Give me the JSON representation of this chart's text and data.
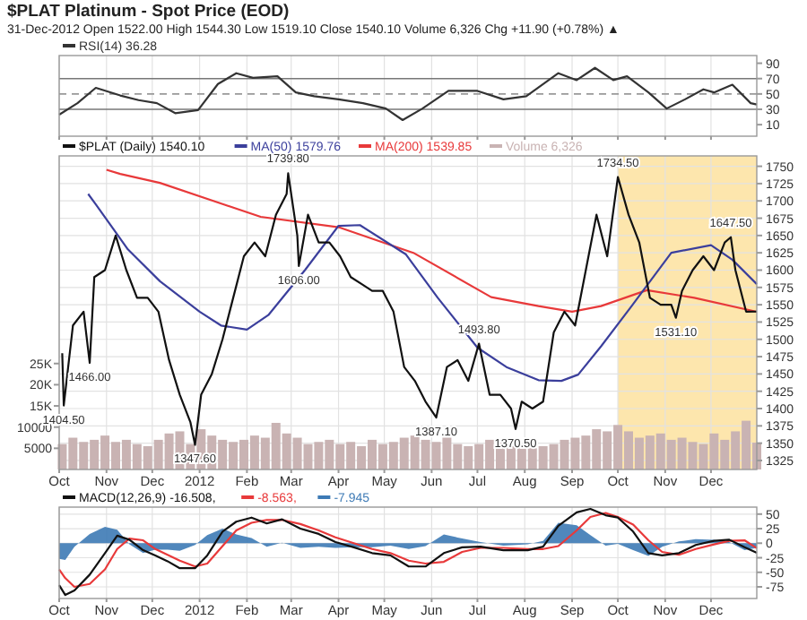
{
  "chart_data": [
    {
      "type": "line",
      "title": "$PLAT Platinum - Spot Price (EOD)",
      "subtitle": "31-Dec-2012   Open 1522.00  High 1544.30  Low 1519.10  Close 1540.10  Volume 6,326  Chg +11.90 (+0.78%) ▲",
      "xlim": [
        "2011-10-01",
        "2012-12-31"
      ],
      "xticks": [
        {
          "value": "2011-10-01",
          "label": null
        },
        {
          "value": "2011-11-01",
          "label": null
        },
        {
          "value": "2011-12-01",
          "label": null
        },
        {
          "value": "2012-01-01",
          "label": null
        },
        {
          "value": "2012-02-01",
          "label": null
        },
        {
          "value": "2012-03-01",
          "label": null
        },
        {
          "value": "2012-04-01",
          "label": null
        },
        {
          "value": "2012-05-01",
          "label": null
        },
        {
          "value": "2012-06-01",
          "label": null
        },
        {
          "value": "2012-07-01",
          "label": null
        },
        {
          "value": "2012-08-01",
          "label": null
        },
        {
          "value": "2012-09-01",
          "label": null
        },
        {
          "value": "2012-10-01",
          "label": null
        },
        {
          "value": "2012-11-01",
          "label": null
        },
        {
          "value": "2012-12-01",
          "label": null
        }
      ],
      "ylim": [
        -5,
        100
      ],
      "yticks": [
        10,
        30,
        50,
        70,
        90
      ],
      "grid": "x",
      "tick_labels": "y",
      "legend": "top left",
      "ref_lines": [
        {
          "axis": "y",
          "value": 70,
          "color": "#777777",
          "line_style": "solid"
        },
        {
          "axis": "y",
          "value": 50,
          "color": "#999999",
          "line_style": "dashed"
        },
        {
          "axis": "y",
          "value": 30,
          "color": "#777777",
          "line_style": "solid"
        }
      ],
      "series": [
        {
          "name": "RSI(14) 36.28",
          "color": "#333333",
          "x": [
            "2011-10-01",
            "2011-10-13",
            "2011-10-25",
            "2011-11-10",
            "2011-11-22",
            "2011-12-04",
            "2011-12-16",
            "2011-12-31",
            "2012-01-13",
            "2012-01-25",
            "2012-02-05",
            "2012-02-21",
            "2012-03-04",
            "2012-03-16",
            "2012-04-01",
            "2012-04-17",
            "2012-05-02",
            "2012-05-13",
            "2012-05-26",
            "2012-06-12",
            "2012-07-01",
            "2012-07-18",
            "2012-08-02",
            "2012-08-23",
            "2012-09-04",
            "2012-09-16",
            "2012-09-28",
            "2012-10-07",
            "2012-10-21",
            "2012-11-02",
            "2012-11-14",
            "2012-11-26",
            "2012-12-03",
            "2012-12-15",
            "2012-12-27",
            "2012-12-31"
          ],
          "values": [
            23,
            38,
            58,
            48,
            42,
            38,
            25,
            29,
            63,
            77,
            71,
            73,
            52,
            47,
            43,
            38,
            31,
            16,
            31,
            54,
            54,
            43,
            47,
            77,
            68,
            84,
            68,
            73,
            52,
            31,
            43,
            56,
            52,
            62,
            38,
            36.28
          ]
        }
      ]
    },
    {
      "type": "line",
      "xlim": [
        "2011-10-01",
        "2012-12-31"
      ],
      "xticks": [
        {
          "value": "2011-10-01",
          "label": "Oct"
        },
        {
          "value": "2011-11-01",
          "label": "Nov"
        },
        {
          "value": "2011-12-01",
          "label": "Dec"
        },
        {
          "value": "2012-01-01",
          "label": "2012"
        },
        {
          "value": "2012-02-01",
          "label": "Feb"
        },
        {
          "value": "2012-03-01",
          "label": "Mar"
        },
        {
          "value": "2012-04-01",
          "label": "Apr"
        },
        {
          "value": "2012-05-01",
          "label": "May"
        },
        {
          "value": "2012-06-01",
          "label": "Jun"
        },
        {
          "value": "2012-07-01",
          "label": "Jul"
        },
        {
          "value": "2012-08-01",
          "label": "Aug"
        },
        {
          "value": "2012-09-01",
          "label": "Sep"
        },
        {
          "value": "2012-10-01",
          "label": "Oct"
        },
        {
          "value": "2012-11-01",
          "label": "Nov"
        },
        {
          "value": "2012-12-01",
          "label": "Dec"
        }
      ],
      "ylim": [
        1312,
        1765
      ],
      "yticks": [
        1325,
        1350,
        1375,
        1400,
        1425,
        1450,
        1475,
        1500,
        1525,
        1550,
        1575,
        1600,
        1625,
        1650,
        1675,
        1700,
        1725,
        1750
      ],
      "y2lim": [
        0,
        74000
      ],
      "y2ticks": [
        5000,
        10000,
        {
          "value": 15000,
          "label": "15K"
        },
        {
          "value": 20000,
          "label": "20K"
        },
        {
          "value": 25000,
          "label": "25K"
        }
      ],
      "grid": true,
      "legend": "top left",
      "bands": [
        {
          "axis": "x",
          "from": "2012-10-01",
          "to": "2012-12-31",
          "color": "#fde6ad"
        }
      ],
      "annotations": [
        {
          "text": "1404.50",
          "x": "2011-10-04",
          "y": 1404.5
        },
        {
          "text": "1466.00",
          "x": "2011-10-21",
          "y": 1466
        },
        {
          "text": "1347.60",
          "x": "2011-12-29",
          "y": 1347.6
        },
        {
          "text": "1739.80",
          "x": "2012-02-28",
          "y": 1739.8
        },
        {
          "text": "1606.00",
          "x": "2012-03-06",
          "y": 1606
        },
        {
          "text": "1387.10",
          "x": "2012-06-04",
          "y": 1387.1
        },
        {
          "text": "1493.80",
          "x": "2012-07-02",
          "y": 1493.8
        },
        {
          "text": "1370.50",
          "x": "2012-07-26",
          "y": 1370.5
        },
        {
          "text": "1734.50",
          "x": "2012-10-01",
          "y": 1734.5
        },
        {
          "text": "1531.10",
          "x": "2012-11-08",
          "y": 1531.1
        },
        {
          "text": "1647.50",
          "x": "2012-12-14",
          "y": 1647.5
        }
      ],
      "series": [
        {
          "name": "Volume 6,326",
          "type": "bar",
          "axis": "y2",
          "color": "#c9b3b3",
          "x": [
            "2011-10-03",
            "2011-10-10",
            "2011-10-17",
            "2011-10-24",
            "2011-10-31",
            "2011-11-07",
            "2011-11-14",
            "2011-11-21",
            "2011-11-28",
            "2011-12-05",
            "2011-12-12",
            "2011-12-19",
            "2011-12-26",
            "2012-01-02",
            "2012-01-09",
            "2012-01-16",
            "2012-01-23",
            "2012-01-30",
            "2012-02-06",
            "2012-02-13",
            "2012-02-20",
            "2012-02-27",
            "2012-03-05",
            "2012-03-12",
            "2012-03-19",
            "2012-03-26",
            "2012-04-02",
            "2012-04-09",
            "2012-04-16",
            "2012-04-23",
            "2012-04-30",
            "2012-05-07",
            "2012-05-14",
            "2012-05-21",
            "2012-05-28",
            "2012-06-04",
            "2012-06-11",
            "2012-06-18",
            "2012-06-25",
            "2012-07-02",
            "2012-07-09",
            "2012-07-16",
            "2012-07-23",
            "2012-07-30",
            "2012-08-06",
            "2012-08-13",
            "2012-08-20",
            "2012-08-27",
            "2012-09-03",
            "2012-09-10",
            "2012-09-17",
            "2012-09-24",
            "2012-10-01",
            "2012-10-08",
            "2012-10-15",
            "2012-10-22",
            "2012-10-29",
            "2012-11-05",
            "2012-11-12",
            "2012-11-19",
            "2012-11-26",
            "2012-12-03",
            "2012-12-10",
            "2012-12-17",
            "2012-12-24",
            "2012-12-31"
          ],
          "values": [
            6000,
            7500,
            6500,
            7000,
            8000,
            6500,
            7000,
            6000,
            5500,
            7000,
            8500,
            9000,
            6000,
            9500,
            8000,
            7000,
            6500,
            7000,
            8000,
            7500,
            11000,
            8500,
            7500,
            6000,
            6500,
            7000,
            6000,
            6500,
            5500,
            7000,
            6000,
            6500,
            7500,
            8000,
            7000,
            6500,
            7500,
            6000,
            5500,
            6000,
            7000,
            6500,
            5500,
            6000,
            5000,
            5500,
            6000,
            7000,
            7500,
            8000,
            9500,
            9000,
            10500,
            9000,
            7500,
            8000,
            8500,
            7000,
            7500,
            6500,
            6000,
            8500,
            7000,
            9000,
            11500,
            6326
          ]
        },
        {
          "name": "MA(200) 1539.85",
          "color": "#e8393a",
          "x": [
            "2011-11-01",
            "2011-11-10",
            "2011-12-06",
            "2012-01-10",
            "2012-02-10",
            "2012-04-01",
            "2012-05-20",
            "2012-07-10",
            "2012-08-10",
            "2012-09-01",
            "2012-09-20",
            "2012-10-20",
            "2012-11-20",
            "2012-12-31"
          ],
          "values": [
            1745,
            1739,
            1726,
            1700,
            1677,
            1662,
            1625,
            1561,
            1548,
            1540,
            1548,
            1571,
            1560,
            1539.85
          ]
        },
        {
          "name": "MA(50) 1579.76",
          "color": "#3b3f9c",
          "x": [
            "2011-10-20",
            "2011-10-25",
            "2011-11-15",
            "2011-12-06",
            "2012-01-01",
            "2012-01-15",
            "2012-02-01",
            "2012-02-15",
            "2012-03-10",
            "2012-04-01",
            "2012-04-15",
            "2012-05-15",
            "2012-06-05",
            "2012-07-01",
            "2012-07-20",
            "2012-08-10",
            "2012-08-25",
            "2012-09-05",
            "2012-09-20",
            "2012-10-10",
            "2012-11-05",
            "2012-12-01",
            "2012-12-15",
            "2012-12-31"
          ],
          "values": [
            1710,
            1695,
            1630,
            1584,
            1540,
            1520,
            1514,
            1535,
            1600,
            1664,
            1665,
            1623,
            1560,
            1488,
            1460,
            1441,
            1440,
            1449,
            1490,
            1548,
            1625,
            1636,
            1615,
            1579.76
          ]
        },
        {
          "name": "$PLAT (Daily) 1540.10",
          "color": "#111111",
          "x": [
            "2011-10-03",
            "2011-10-04",
            "2011-10-10",
            "2011-10-17",
            "2011-10-21",
            "2011-10-24",
            "2011-10-31",
            "2011-11-07",
            "2011-11-14",
            "2011-11-21",
            "2011-11-28",
            "2011-12-05",
            "2011-12-12",
            "2011-12-19",
            "2011-12-26",
            "2011-12-29",
            "2012-01-02",
            "2012-01-09",
            "2012-01-16",
            "2012-01-23",
            "2012-01-30",
            "2012-02-06",
            "2012-02-13",
            "2012-02-20",
            "2012-02-27",
            "2012-02-28",
            "2012-03-05",
            "2012-03-06",
            "2012-03-12",
            "2012-03-19",
            "2012-03-26",
            "2012-04-02",
            "2012-04-09",
            "2012-04-16",
            "2012-04-23",
            "2012-04-30",
            "2012-05-07",
            "2012-05-14",
            "2012-05-21",
            "2012-05-28",
            "2012-06-04",
            "2012-06-11",
            "2012-06-18",
            "2012-06-25",
            "2012-07-02",
            "2012-07-09",
            "2012-07-16",
            "2012-07-23",
            "2012-07-26",
            "2012-07-30",
            "2012-08-06",
            "2012-08-13",
            "2012-08-20",
            "2012-08-27",
            "2012-09-03",
            "2012-09-10",
            "2012-09-17",
            "2012-09-24",
            "2012-10-01",
            "2012-10-08",
            "2012-10-15",
            "2012-10-22",
            "2012-10-29",
            "2012-11-05",
            "2012-11-08",
            "2012-11-12",
            "2012-11-19",
            "2012-11-26",
            "2012-12-03",
            "2012-12-10",
            "2012-12-14",
            "2012-12-17",
            "2012-12-24",
            "2012-12-31"
          ],
          "values": [
            1480,
            1404.5,
            1520,
            1540,
            1466,
            1590,
            1600,
            1650,
            1600,
            1560,
            1560,
            1540,
            1470,
            1420,
            1380,
            1347.6,
            1420,
            1450,
            1500,
            1560,
            1620,
            1640,
            1620,
            1680,
            1710,
            1739.8,
            1650,
            1606,
            1680,
            1640,
            1640,
            1620,
            1590,
            1580,
            1570,
            1570,
            1540,
            1460,
            1440,
            1410,
            1387.1,
            1460,
            1470,
            1440,
            1493.8,
            1420,
            1420,
            1400,
            1370.5,
            1410,
            1400,
            1410,
            1510,
            1540,
            1520,
            1600,
            1680,
            1620,
            1734.5,
            1680,
            1640,
            1560,
            1550,
            1550,
            1531.1,
            1570,
            1600,
            1620,
            1600,
            1640,
            1647.5,
            1600,
            1540,
            1540.1
          ]
        }
      ]
    },
    {
      "type": "line",
      "xlim": [
        "2011-10-01",
        "2012-12-31"
      ],
      "xticks": [
        {
          "value": "2011-10-01",
          "label": "Oct"
        },
        {
          "value": "2011-11-01",
          "label": "Nov"
        },
        {
          "value": "2011-12-01",
          "label": "Dec"
        },
        {
          "value": "2012-01-01",
          "label": "2012"
        },
        {
          "value": "2012-02-01",
          "label": "Feb"
        },
        {
          "value": "2012-03-01",
          "label": "Mar"
        },
        {
          "value": "2012-04-01",
          "label": "Apr"
        },
        {
          "value": "2012-05-01",
          "label": "May"
        },
        {
          "value": "2012-06-01",
          "label": "Jun"
        },
        {
          "value": "2012-07-01",
          "label": "Jul"
        },
        {
          "value": "2012-08-01",
          "label": "Aug"
        },
        {
          "value": "2012-09-01",
          "label": "Sep"
        },
        {
          "value": "2012-10-01",
          "label": "Oct"
        },
        {
          "value": "2012-11-01",
          "label": "Nov"
        },
        {
          "value": "2012-12-01",
          "label": "Dec"
        }
      ],
      "ylim": [
        -95,
        62
      ],
      "yticks": [
        50,
        25,
        0,
        -25,
        -50,
        -75
      ],
      "grid": true,
      "legend": "top left",
      "series": [
        {
          "name": "-7.945",
          "type": "area",
          "color": "#3d7ab5",
          "x": [
            "2011-10-01",
            "2011-10-05",
            "2011-10-11",
            "2011-10-21",
            "2011-10-31",
            "2011-11-08",
            "2011-11-16",
            "2011-11-25",
            "2011-12-03",
            "2011-12-11",
            "2011-12-19",
            "2011-12-29",
            "2012-01-06",
            "2012-01-16",
            "2012-01-25",
            "2012-02-04",
            "2012-02-14",
            "2012-02-24",
            "2012-03-07",
            "2012-03-19",
            "2012-03-30",
            "2012-04-11",
            "2012-04-23",
            "2012-05-05",
            "2012-05-17",
            "2012-05-28",
            "2012-06-09",
            "2012-06-21",
            "2012-07-03",
            "2012-07-18",
            "2012-08-03",
            "2012-08-13",
            "2012-08-23",
            "2012-09-04",
            "2012-09-13",
            "2012-09-23",
            "2012-10-01",
            "2012-10-11",
            "2012-10-21",
            "2012-10-30",
            "2012-11-10",
            "2012-11-21",
            "2012-12-03",
            "2012-12-13",
            "2012-12-23",
            "2012-12-31"
          ],
          "values": [
            -27,
            -29,
            -6,
            16,
            28,
            23,
            -2,
            -17,
            -11,
            -11,
            -13,
            -3,
            14,
            25,
            15,
            9,
            -6,
            1,
            -8,
            -6,
            -8,
            -7,
            -7,
            -4,
            -10,
            -5,
            15,
            8,
            2,
            -4,
            -2,
            4,
            35,
            31,
            14,
            -4,
            -1,
            -12,
            -22,
            -6,
            3,
            7,
            6,
            2,
            -12,
            -7.945
          ]
        },
        {
          "name": "-8.563,",
          "color": "#e8393a",
          "x": [
            "2011-10-01",
            "2011-10-05",
            "2011-10-11",
            "2011-10-21",
            "2011-10-31",
            "2011-11-08",
            "2011-11-16",
            "2011-11-25",
            "2011-12-03",
            "2011-12-11",
            "2011-12-19",
            "2011-12-29",
            "2012-01-06",
            "2012-01-16",
            "2012-01-25",
            "2012-02-04",
            "2012-02-14",
            "2012-02-24",
            "2012-03-07",
            "2012-03-19",
            "2012-03-30",
            "2012-04-11",
            "2012-04-23",
            "2012-05-05",
            "2012-05-17",
            "2012-05-28",
            "2012-06-09",
            "2012-06-21",
            "2012-07-03",
            "2012-07-18",
            "2012-08-03",
            "2012-08-13",
            "2012-08-23",
            "2012-09-04",
            "2012-09-13",
            "2012-09-23",
            "2012-10-01",
            "2012-10-11",
            "2012-10-21",
            "2012-10-30",
            "2012-11-10",
            "2012-11-21",
            "2012-12-03",
            "2012-12-13",
            "2012-12-23",
            "2012-12-31"
          ],
          "values": [
            -45,
            -60,
            -75,
            -70,
            -45,
            -10,
            8,
            5,
            -10,
            -20,
            -30,
            -40,
            -35,
            -5,
            22,
            35,
            40,
            40,
            33,
            22,
            10,
            0,
            -10,
            -17,
            -30,
            -35,
            -32,
            -15,
            -8,
            -8,
            -10,
            -10,
            -5,
            22,
            45,
            52,
            45,
            32,
            5,
            -15,
            -20,
            -10,
            -2,
            4,
            5,
            -8.563
          ]
        },
        {
          "name": "MACD(12,26,9) -16.508,",
          "color": "#111111",
          "x": [
            "2011-10-01",
            "2011-10-05",
            "2011-10-11",
            "2011-10-21",
            "2011-10-31",
            "2011-11-08",
            "2011-11-16",
            "2011-11-25",
            "2011-12-03",
            "2011-12-11",
            "2011-12-19",
            "2011-12-29",
            "2012-01-06",
            "2012-01-16",
            "2012-01-25",
            "2012-02-04",
            "2012-02-14",
            "2012-02-24",
            "2012-03-07",
            "2012-03-19",
            "2012-03-30",
            "2012-04-11",
            "2012-04-23",
            "2012-05-05",
            "2012-05-17",
            "2012-05-28",
            "2012-06-09",
            "2012-06-21",
            "2012-07-03",
            "2012-07-18",
            "2012-08-03",
            "2012-08-13",
            "2012-08-23",
            "2012-09-04",
            "2012-09-13",
            "2012-09-23",
            "2012-10-01",
            "2012-10-11",
            "2012-10-21",
            "2012-10-30",
            "2012-11-10",
            "2012-11-21",
            "2012-12-03",
            "2012-12-13",
            "2012-12-23",
            "2012-12-31"
          ],
          "values": [
            -72,
            -89,
            -81,
            -54,
            -17,
            13,
            6,
            -12,
            -21,
            -31,
            -43,
            -43,
            -21,
            20,
            37,
            44,
            34,
            41,
            25,
            16,
            2,
            -7,
            -17,
            -21,
            -40,
            -40,
            -17,
            -7,
            -6,
            -12,
            -12,
            -6,
            30,
            53,
            59,
            48,
            44,
            20,
            -17,
            -21,
            -17,
            -3,
            4,
            6,
            -7,
            -16.508
          ]
        }
      ]
    }
  ]
}
